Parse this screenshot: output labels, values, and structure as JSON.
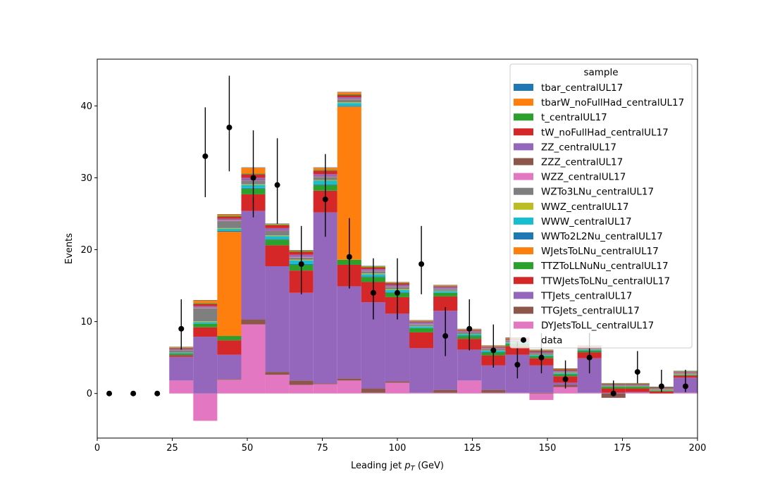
{
  "chart_data": {
    "type": "bar",
    "stacked": true,
    "histogram": true,
    "xlabel_text": "Leading jet  ",
    "xlabel_math": "p",
    "xlabel_sub": "T",
    "xlabel_unit": " (GeV)",
    "ylabel": "Events",
    "xlim": [
      0,
      200
    ],
    "ylim": [
      -6.2,
      46.5
    ],
    "xticks": [
      0,
      25,
      50,
      75,
      100,
      125,
      150,
      175,
      200
    ],
    "yticks": [
      0,
      10,
      20,
      30,
      40
    ],
    "grid": false,
    "legend_title": "sample",
    "legend_position": "top-right",
    "bin_edges": [
      0,
      8,
      16,
      24,
      32,
      40,
      48,
      56,
      64,
      72,
      80,
      88,
      96,
      104,
      112,
      120,
      128,
      136,
      144,
      152,
      160,
      168,
      176,
      184,
      192,
      200
    ],
    "series": [
      {
        "name": "DYJetsToLL_centralUL17",
        "color": "#e377c2",
        "values": [
          0,
          0,
          0,
          1.8,
          -3.8,
          1.9,
          9.6,
          2.6,
          1.2,
          1.3,
          1.8,
          0.1,
          1.5,
          0.1,
          0.1,
          1.8,
          0.1,
          0.1,
          -0.9,
          0.9,
          0.1,
          0,
          0.1,
          0,
          0.1
        ]
      },
      {
        "name": "TTGJets_centralUL17",
        "color": "#8c564b",
        "values": [
          0,
          0,
          0,
          0,
          0,
          0.1,
          0.7,
          0.4,
          0.6,
          0.1,
          0.3,
          0.6,
          0.2,
          0,
          0.4,
          0,
          0.4,
          0,
          0.1,
          0.3,
          0,
          -0.6,
          0,
          0,
          0
        ]
      },
      {
        "name": "TTJets_centralUL17",
        "color": "#9467bd",
        "values": [
          0,
          0,
          0,
          3.3,
          7.9,
          3.4,
          15.1,
          14.7,
          12.2,
          23.8,
          12.8,
          12.0,
          9.4,
          6.2,
          11.0,
          4.3,
          3.4,
          5.3,
          3.8,
          0.3,
          4.8,
          0.1,
          0.1,
          0,
          2.1
        ]
      },
      {
        "name": "TTWJetsToLNu_centralUL17",
        "color": "#d62728",
        "values": [
          0,
          0,
          0,
          0.2,
          1.3,
          2.0,
          2.3,
          2.9,
          3.1,
          3.0,
          3.0,
          2.8,
          2.3,
          2.2,
          2.0,
          1.5,
          1.4,
          1.2,
          1.0,
          0.9,
          0.8,
          0.6,
          0.5,
          0.3,
          0.3
        ]
      },
      {
        "name": "TTZToLLNuNu_centralUL17",
        "color": "#2ca02c",
        "values": [
          0,
          0,
          0,
          0.2,
          0.5,
          0.6,
          0.8,
          0.8,
          0.8,
          0.8,
          0.7,
          0.7,
          0.6,
          0.6,
          0.5,
          0.4,
          0.4,
          0.3,
          0.3,
          0.3,
          0.2,
          0.2,
          0.2,
          0.1,
          0.1
        ]
      },
      {
        "name": "WJetsToLNu_centralUL17",
        "color": "#ff7f0e",
        "values": [
          0,
          0,
          0,
          0,
          0,
          14.5,
          0,
          0,
          0,
          0,
          21.3,
          0,
          0,
          0,
          0,
          0,
          0,
          0,
          0,
          0,
          0,
          0,
          0,
          0,
          0
        ]
      },
      {
        "name": "WWTo2L2Nu_centralUL17",
        "color": "#1f77b4",
        "values": [
          0,
          0,
          0,
          0.05,
          0.05,
          0.1,
          0.1,
          0.1,
          0.1,
          0.1,
          0.1,
          0.1,
          0.1,
          0.05,
          0.05,
          0.05,
          0.05,
          0.05,
          0.05,
          0.05,
          0.05,
          0,
          0,
          0,
          0
        ]
      },
      {
        "name": "WWW_centralUL17",
        "color": "#17becf",
        "values": [
          0,
          0,
          0,
          0.1,
          0.2,
          0.3,
          0.4,
          0.4,
          0.5,
          0.5,
          0.4,
          0.3,
          0.3,
          0.2,
          0.2,
          0.2,
          0.2,
          0.1,
          0.1,
          0.1,
          0.1,
          0.05,
          0.05,
          0.05,
          0.05
        ]
      },
      {
        "name": "WWZ_centralUL17",
        "color": "#bcbd22",
        "values": [
          0,
          0,
          0,
          0.05,
          0.1,
          0.1,
          0.1,
          0.1,
          0.1,
          0.1,
          0.1,
          0.1,
          0.1,
          0.05,
          0.05,
          0.05,
          0.05,
          0.05,
          0.05,
          0.05,
          0.05,
          0.05,
          0.05,
          0.05,
          0.05
        ]
      },
      {
        "name": "WZTo3LNu_centralUL17",
        "color": "#7f7f7f",
        "values": [
          0,
          0,
          0,
          0.3,
          1.8,
          1.0,
          0.5,
          0.6,
          0.3,
          0.4,
          0.4,
          0.3,
          0.3,
          0.2,
          0.2,
          0.2,
          0.2,
          0.2,
          0.2,
          0.1,
          0.1,
          0.1,
          0.1,
          0.1,
          0.1
        ]
      },
      {
        "name": "WZZ_centralUL17",
        "color": "#e377c2",
        "values": [
          0,
          0,
          0,
          0.05,
          0.05,
          0.05,
          0.05,
          0.05,
          0.05,
          0.05,
          0.05,
          0.05,
          0.05,
          0.05,
          0.05,
          0.05,
          0.05,
          0.05,
          0.05,
          0.05,
          0.05,
          0.05,
          0.05,
          0.05,
          0.05
        ]
      },
      {
        "name": "ZZZ_centralUL17",
        "color": "#8c564b",
        "values": [
          0,
          0,
          0,
          0.05,
          0.05,
          0.05,
          0.05,
          0.05,
          0.05,
          0.05,
          0.05,
          0.05,
          0.05,
          0.05,
          0.05,
          0.05,
          0.05,
          0.05,
          0.05,
          0.05,
          0.05,
          0.05,
          0.05,
          0.05,
          0.05
        ]
      },
      {
        "name": "ZZ_centralUL17",
        "color": "#9467bd",
        "values": [
          0,
          0,
          0,
          0.1,
          0.2,
          0.2,
          0.3,
          0.3,
          0.3,
          0.3,
          0.2,
          0.2,
          0.2,
          0.2,
          0.2,
          0.1,
          0.1,
          0.1,
          0.1,
          0.1,
          0.1,
          0.05,
          0.05,
          0.05,
          0.05
        ]
      },
      {
        "name": "tW_noFullHad_centralUL17",
        "color": "#d62728",
        "values": [
          0,
          0,
          0,
          0.1,
          0.3,
          0.3,
          0.5,
          0.4,
          0.4,
          0.5,
          0.3,
          0.2,
          0.2,
          0.1,
          0.1,
          0.1,
          0.1,
          0.1,
          0.1,
          0.1,
          0.1,
          0.05,
          0.05,
          0.05,
          0.05
        ]
      },
      {
        "name": "t_centralUL17",
        "color": "#2ca02c",
        "values": [
          0,
          0,
          0,
          0.05,
          0.1,
          0.1,
          0.1,
          0.1,
          0.1,
          0.1,
          0.1,
          0.1,
          0.05,
          0.05,
          0.05,
          0.05,
          0.05,
          0.05,
          0.05,
          0.05,
          0.05,
          0.05,
          0.05,
          0.05,
          0.05
        ]
      },
      {
        "name": "tbarW_noFullHad_centralUL17",
        "color": "#ff7f0e",
        "values": [
          0,
          0,
          0,
          0.1,
          0.4,
          0.2,
          0.8,
          0.1,
          0.1,
          0.3,
          0.3,
          0.1,
          0.1,
          0.1,
          0.1,
          0.1,
          0.1,
          0.1,
          0.1,
          0.1,
          0.1,
          0.05,
          0.05,
          0.05,
          0.05
        ]
      },
      {
        "name": "tbar_centralUL17",
        "color": "#1f77b4",
        "values": [
          0,
          0,
          0,
          0.05,
          0.05,
          0.05,
          0.05,
          0.05,
          0.05,
          0.05,
          0.05,
          0.05,
          0.05,
          0.05,
          0.05,
          0.05,
          0.05,
          0.05,
          0.05,
          0.05,
          0.05,
          0.05,
          0.05,
          0.05,
          0.05
        ]
      }
    ],
    "data_points": {
      "name": "data",
      "color": "#000000",
      "x": [
        4,
        12,
        20,
        28,
        36,
        44,
        52,
        60,
        68,
        76,
        84,
        92,
        100,
        108,
        116,
        124,
        132,
        140,
        148,
        156,
        164,
        172,
        180,
        188,
        196
      ],
      "y": [
        0,
        0,
        0,
        9,
        33,
        37,
        30,
        29,
        18,
        27,
        19,
        14,
        14,
        18,
        8,
        9,
        6,
        4,
        5,
        2,
        5,
        0,
        3,
        1,
        1
      ],
      "yerr_low": [
        0,
        0,
        0,
        2.9,
        5.7,
        6.1,
        5.5,
        5.4,
        4.2,
        5.2,
        4.4,
        3.7,
        3.7,
        4.2,
        2.8,
        3.0,
        2.4,
        1.9,
        2.2,
        1.3,
        2.2,
        0,
        1.6,
        0.8,
        0.8
      ],
      "yerr_high": [
        0,
        0,
        0,
        4.1,
        6.8,
        7.2,
        6.6,
        6.5,
        5.3,
        6.3,
        5.4,
        4.8,
        4.8,
        5.3,
        4.0,
        4.1,
        3.6,
        3.2,
        3.4,
        2.6,
        3.4,
        1.8,
        2.9,
        2.3,
        2.3
      ]
    }
  }
}
